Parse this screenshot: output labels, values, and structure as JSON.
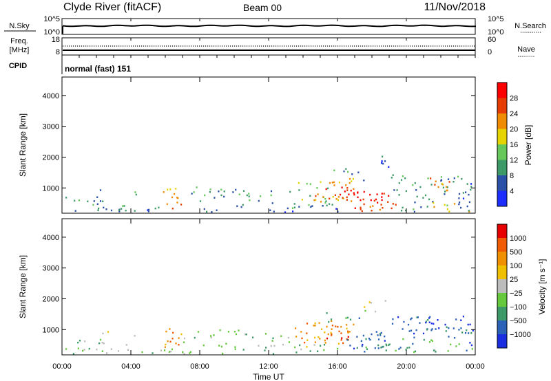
{
  "header": {
    "station": "Clyde River (fitACF)",
    "beam": "Beam 00",
    "date": "11/Nov/2018"
  },
  "labels": {
    "nsky": "N.Sky",
    "nsky_top": "10^5",
    "nsky_bottom": "10^0",
    "nsearch": "N.Search",
    "nsearch_top": "10^5",
    "nsearch_bottom": "10^0",
    "freq": "Freq.",
    "freq_unit": "[MHz]",
    "freq_top": "18",
    "freq_bottom": "8",
    "nave_top": "60",
    "nave_bottom": "0",
    "nave": "Nave",
    "cpid": "CPID",
    "cpid_value": "normal (fast) 151"
  },
  "chart_data": [
    {
      "type": "heatmap",
      "name": "power",
      "ylabel": "Slant Range [km]",
      "yticks": [
        1000,
        2000,
        3000,
        4000
      ],
      "ylim": [
        180,
        4600
      ],
      "xlim": [
        0,
        24
      ],
      "colorbar": {
        "label": "Power [dB]",
        "ticks": [
          "4",
          "8",
          "12",
          "16",
          "20",
          "24",
          "28"
        ],
        "colors": [
          "#1d2cff",
          "#2b50a8",
          "#3d9a68",
          "#66c85a",
          "#e6d400",
          "#f08a00",
          "#e63c00",
          "#ff0000"
        ]
      }
    },
    {
      "type": "heatmap",
      "name": "velocity",
      "ylabel": "Slant Range [km]",
      "yticks": [
        1000,
        2000,
        3000,
        4000
      ],
      "ylim": [
        180,
        4600
      ],
      "xlim": [
        0,
        24
      ],
      "colorbar": {
        "label": "Velocity [m s⁻¹]",
        "ticks": [
          "1000",
          "500",
          "100",
          "25",
          "−25",
          "−100",
          "−500",
          "−1000"
        ],
        "colors": [
          "#1a2ee0",
          "#2b62b8",
          "#3d9a68",
          "#66c83c",
          "#bcbcbc",
          "#f0c000",
          "#f09000",
          "#f05a00",
          "#e60000"
        ]
      }
    }
  ],
  "xaxis": {
    "ticks": [
      "00:00",
      "04:00",
      "08:00",
      "12:00",
      "16:00",
      "20:00",
      "00:00"
    ],
    "label": "Time UT"
  }
}
